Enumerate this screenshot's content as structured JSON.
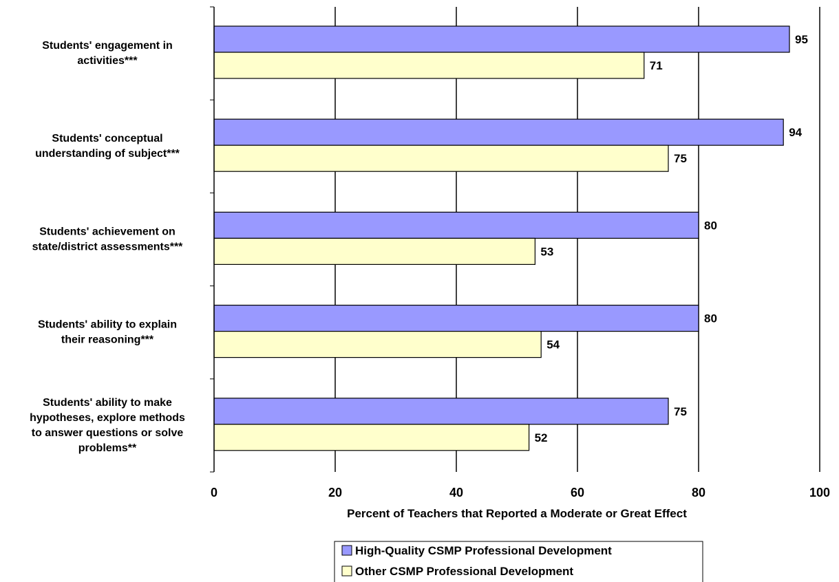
{
  "chart_data": {
    "type": "bar",
    "orientation": "horizontal",
    "categories": [
      "Students' engagement in activities***",
      "Students' conceptual understanding of subject***",
      "Students' achievement on state/district assessments***",
      "Students' ability to explain their reasoning***",
      "Students' ability to make hypotheses, explore methods to answer questions or solve problems**"
    ],
    "category_lines": [
      [
        "Students' engagement in",
        "activities***"
      ],
      [
        "Students' conceptual",
        "understanding of subject***"
      ],
      [
        "Students' achievement on",
        "state/district assessments***"
      ],
      [
        "Students' ability to explain",
        "their reasoning***"
      ],
      [
        "Students' ability to make",
        "hypotheses, explore methods",
        "to answer questions or solve",
        "problems**"
      ]
    ],
    "series": [
      {
        "name": "High-Quality CSMP Professional Development",
        "color": "#9999ff",
        "values": [
          95,
          94,
          80,
          80,
          75
        ]
      },
      {
        "name": "Other CSMP Professional Development",
        "color": "#ffffcc",
        "values": [
          71,
          75,
          53,
          54,
          52
        ]
      }
    ],
    "xlabel": "Percent of Teachers that Reported a Moderate or Great Effect",
    "xlim": [
      0,
      100
    ],
    "xticks": [
      0,
      20,
      40,
      60,
      80,
      100
    ],
    "grid": true,
    "legend_position": "bottom"
  }
}
